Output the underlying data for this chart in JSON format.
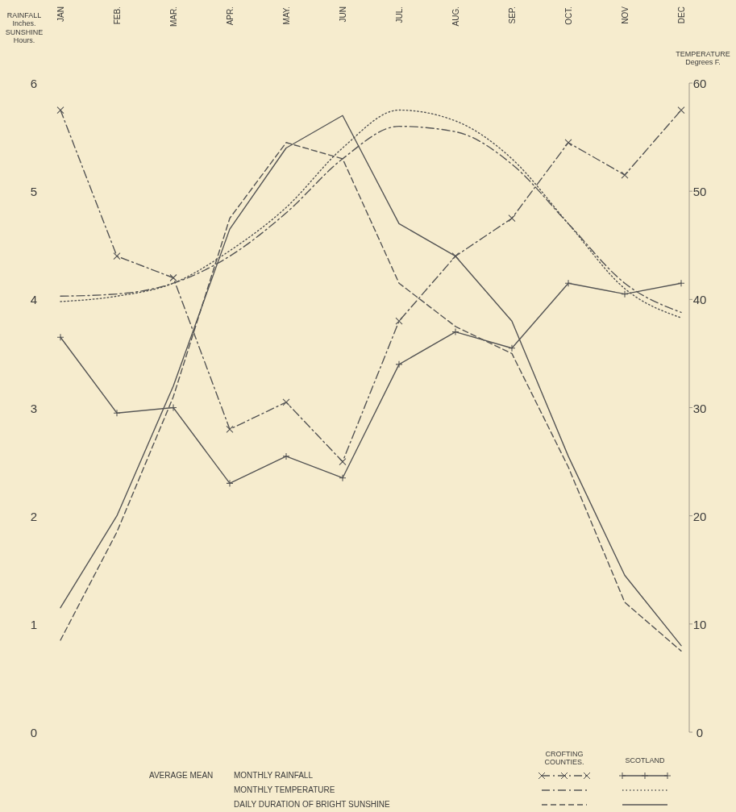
{
  "chart_data": {
    "type": "line",
    "ylabel": "RAINFALL\nInches.\nSUNSHINE\nHours.",
    "y2label": "TEMPERATURE\nDegrees F.",
    "categories": [
      "JAN",
      "FEB.",
      "MAR.",
      "APR.",
      "MAY.",
      "JUN",
      "JUL.",
      "AUG.",
      "SEP.",
      "OCT.",
      "NOV",
      "DEC"
    ],
    "ylim": [
      0,
      6
    ],
    "yticks": [
      0,
      1,
      2,
      3,
      4,
      5,
      6
    ],
    "y2lim": [
      0,
      60
    ],
    "y2ticks": [
      0,
      10,
      20,
      30,
      40,
      50,
      60
    ],
    "series": [
      {
        "color": "#555555",
        "marker": "cross",
        "line_style": "dashdot",
        "values": [
          5.75,
          4.4,
          4.2,
          2.8,
          3.05,
          2.5,
          3.8,
          4.4,
          4.75,
          5.45,
          5.15,
          5.75
        ]
      },
      {
        "color": "#555555",
        "marker": "plus",
        "line_style": "solid",
        "values": [
          3.65,
          2.95,
          3.0,
          2.3,
          2.55,
          2.35,
          3.4,
          3.7,
          3.55,
          4.15,
          4.05,
          4.15
        ]
      },
      {
        "color": "#555555",
        "axis": "y2",
        "line_style": "dashdot",
        "values": [
          40.3,
          40.5,
          41.5,
          44,
          48,
          53,
          56,
          55.5,
          52.5,
          47,
          41.5,
          38.8
        ]
      },
      {
        "color": "#555555",
        "axis": "y2",
        "line_style": "dotted",
        "values": [
          39.8,
          40.3,
          41.5,
          44.5,
          48.5,
          54,
          57.5,
          56.5,
          53,
          47,
          41,
          38.3
        ]
      },
      {
        "color": "#555555",
        "line_style": "dashed",
        "values": [
          0.85,
          1.85,
          3.1,
          4.75,
          5.45,
          5.3,
          4.15,
          3.75,
          3.5,
          2.45,
          1.2,
          0.75
        ]
      },
      {
        "color": "#555555",
        "line_style": "solid",
        "values": [
          1.15,
          2.0,
          3.2,
          4.65,
          5.4,
          5.7,
          4.7,
          4.4,
          3.8,
          2.55,
          1.45,
          0.8
        ]
      }
    ],
    "annotations": [
      "CROFTING COUNTIES.",
      "SCOTLAND",
      "AVERAGE MEAN",
      "MONTHLY RAINFALL",
      "MONTHLY TEMPERATURE",
      "DAILY DURATION OF BRIGHT SUNSHINE"
    ]
  }
}
